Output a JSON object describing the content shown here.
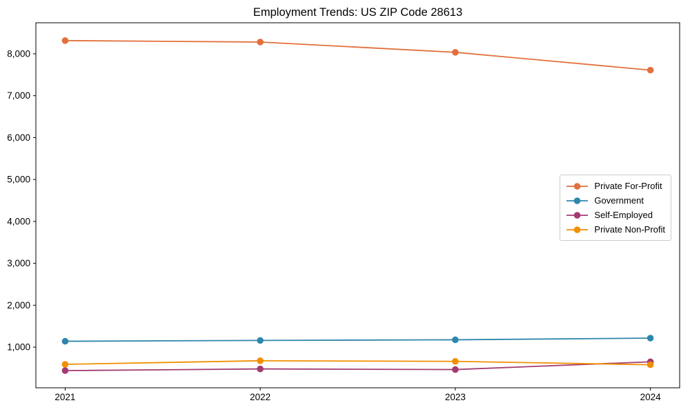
{
  "figure": {
    "background": "#ffffff",
    "frame_color": "#000000",
    "text_color": "#000000",
    "legend_border_color": "#cccccc"
  },
  "chart_data": {
    "type": "line",
    "title": "Employment Trends: US ZIP Code 28613",
    "x": [
      2021,
      2022,
      2023,
      2024
    ],
    "x_tick_labels": [
      "2021",
      "2022",
      "2023",
      "2024"
    ],
    "y_tick_values": [
      1000,
      2000,
      3000,
      4000,
      5000,
      6000,
      7000,
      8000
    ],
    "y_tick_labels": [
      "1,000",
      "2,000",
      "3,000",
      "4,000",
      "5,000",
      "6,000",
      "7,000",
      "8,000"
    ],
    "xlim": [
      2020.85,
      2024.15
    ],
    "ylim": [
      30,
      8740
    ],
    "grid": false,
    "legend_position": "center right",
    "xlabel": "",
    "ylabel": "",
    "series": [
      {
        "name": "Private For-Profit",
        "color": "#E2703C",
        "values": [
          8315,
          8280,
          8035,
          7610
        ]
      },
      {
        "name": "Government",
        "color": "#2E86AB",
        "values": [
          1140,
          1160,
          1175,
          1215
        ]
      },
      {
        "name": "Self-Employed",
        "color": "#A23B72",
        "values": [
          440,
          480,
          465,
          650
        ]
      },
      {
        "name": "Private Non-Profit",
        "color": "#F18F01",
        "values": [
          590,
          675,
          660,
          580
        ]
      }
    ]
  }
}
